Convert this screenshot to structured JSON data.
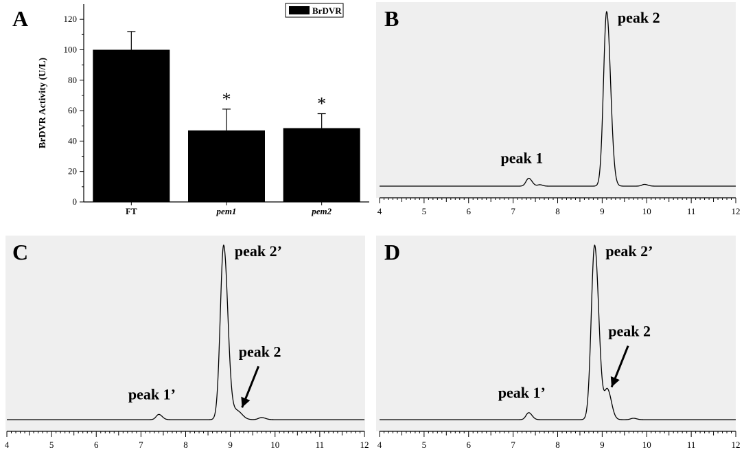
{
  "chart_data": [
    {
      "panel": "A",
      "type": "bar",
      "categories": [
        "FT",
        "pem1",
        "pem2"
      ],
      "category_italic": [
        false,
        true,
        true
      ],
      "values": [
        100,
        47,
        48.5
      ],
      "errors": [
        12,
        14,
        9.5
      ],
      "significance": [
        "",
        "*",
        "*"
      ],
      "ylabel": "BrDVR Activity (U/L)",
      "ylim": [
        0,
        130
      ],
      "yticks": [
        0,
        20,
        40,
        60,
        80,
        100,
        120
      ],
      "legend": [
        "BrDVR"
      ],
      "legend_position": "top-right",
      "colors": {
        "bar": "#000000"
      }
    },
    {
      "panel": "B",
      "type": "line",
      "xlim": [
        4,
        12
      ],
      "xticks": [
        4,
        5,
        6,
        7,
        8,
        9,
        10,
        11,
        12
      ],
      "baseline": 0,
      "peaks": [
        {
          "center": 7.35,
          "height": 0.045,
          "width": 0.06
        },
        {
          "center": 7.6,
          "height": 0.008,
          "width": 0.05
        },
        {
          "center": 9.1,
          "height": 1.0,
          "width": 0.07
        },
        {
          "center": 9.95,
          "height": 0.01,
          "width": 0.06
        }
      ],
      "annotations": [
        {
          "text": "peak 1",
          "x": 7.35
        },
        {
          "text": "peak 2",
          "x": 9.1
        }
      ],
      "background": "#efefef"
    },
    {
      "panel": "C",
      "type": "line",
      "xlim": [
        4,
        12
      ],
      "xticks": [
        4,
        5,
        6,
        7,
        8,
        9,
        10,
        11,
        12
      ],
      "baseline": 0,
      "peaks": [
        {
          "center": 7.4,
          "height": 0.03,
          "width": 0.06
        },
        {
          "center": 8.85,
          "height": 1.0,
          "width": 0.075
        },
        {
          "center": 9.15,
          "height": 0.05,
          "width": 0.09
        },
        {
          "center": 9.7,
          "height": 0.012,
          "width": 0.07
        }
      ],
      "annotations": [
        {
          "text": "peak 1’",
          "x": 7.4
        },
        {
          "text": "peak 2’",
          "x": 8.85
        },
        {
          "text": "peak 2",
          "x": 9.2,
          "arrow": true
        }
      ],
      "background": "#efefef"
    },
    {
      "panel": "D",
      "type": "line",
      "xlim": [
        4,
        12
      ],
      "xticks": [
        4,
        5,
        6,
        7,
        8,
        9,
        10,
        11,
        12
      ],
      "baseline": 0,
      "peaks": [
        {
          "center": 7.35,
          "height": 0.04,
          "width": 0.06
        },
        {
          "center": 8.83,
          "height": 1.0,
          "width": 0.075
        },
        {
          "center": 9.12,
          "height": 0.17,
          "width": 0.07
        },
        {
          "center": 9.7,
          "height": 0.008,
          "width": 0.06
        }
      ],
      "annotations": [
        {
          "text": "peak 1’",
          "x": 7.35
        },
        {
          "text": "peak 2’",
          "x": 8.83
        },
        {
          "text": "peak 2",
          "x": 9.15,
          "arrow": true
        }
      ],
      "background": "#efefef"
    }
  ]
}
